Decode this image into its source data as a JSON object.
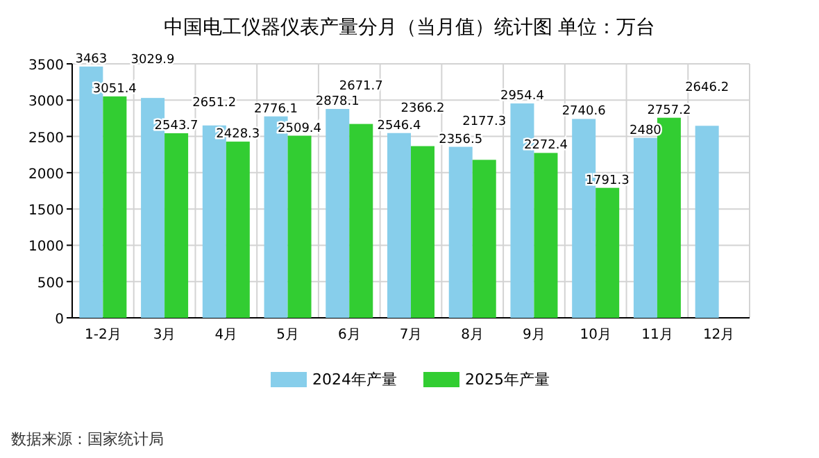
{
  "chart_data": {
    "type": "bar",
    "title": "中国电工仪器仪表产量分月（当月值）统计图 单位：万台",
    "categories": [
      "1-2月",
      "3月",
      "4月",
      "5月",
      "6月",
      "7月",
      "8月",
      "9月",
      "10月",
      "11月",
      "12月"
    ],
    "series": [
      {
        "name": "2024年产量",
        "color": "#87ceeb",
        "values": [
          3463,
          3029.9,
          2651.2,
          2776.1,
          2878.1,
          2546.4,
          2356.5,
          2954.4,
          2740.6,
          2480,
          2646.2
        ]
      },
      {
        "name": "2025年产量",
        "color": "#32cd32",
        "values": [
          3051.4,
          2543.7,
          2428.3,
          2509.4,
          2671.7,
          2366.2,
          2177.3,
          2272.4,
          1791.3,
          2757.2,
          null
        ]
      }
    ],
    "ylim": [
      0,
      3500
    ],
    "yticks": [
      0,
      500,
      1000,
      1500,
      2000,
      2500,
      3000,
      3500
    ],
    "grid": true,
    "legend": "bottom",
    "data_labels": true,
    "annotations": [
      "数据来源：国家统计局"
    ]
  }
}
